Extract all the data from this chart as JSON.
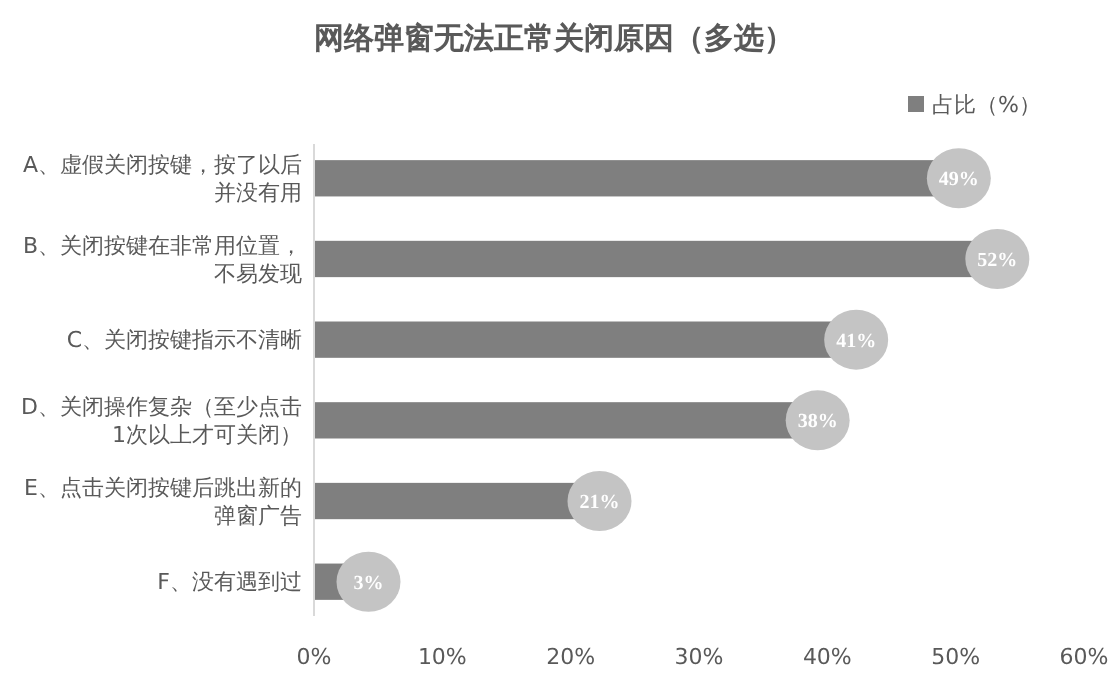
{
  "chart_data": {
    "type": "bar",
    "orientation": "horizontal",
    "title": "网络弹窗无法正常关闭原因（多选）",
    "categories": [
      "A、虚假关闭按键，按了以后并没有用",
      "B、关闭按键在非常用位置，不易发现",
      "C、关闭按键指示不清晰",
      "D、关闭操作复杂（至少点击1次以上才可关闭）",
      "E、点击关闭按键后跳出新的弹窗广告",
      "F、没有遇到过"
    ],
    "series": [
      {
        "name": "占比（%）",
        "color": "#7f7f7f",
        "values": [
          49,
          52,
          41,
          38,
          21,
          3
        ],
        "value_labels": [
          "49%",
          "52%",
          "41%",
          "38%",
          "21%",
          "3%"
        ]
      }
    ],
    "xlim": [
      0,
      60
    ],
    "xticks": [
      {
        "value": 0,
        "label": "0%"
      },
      {
        "value": 10,
        "label": "10%"
      },
      {
        "value": 20,
        "label": "20%"
      },
      {
        "value": 30,
        "label": "30%"
      },
      {
        "value": 40,
        "label": "40%"
      },
      {
        "value": 50,
        "label": "50%"
      },
      {
        "value": 60,
        "label": "60%"
      }
    ],
    "legend": "top right",
    "grid": false
  }
}
